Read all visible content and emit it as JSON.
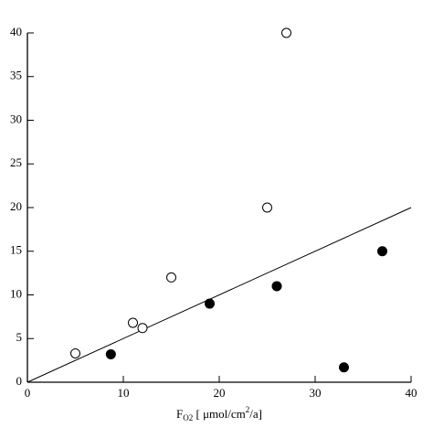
{
  "chart_data": {
    "type": "scatter",
    "x_label_parts": [
      "F",
      "O2",
      " [ μmol/cm",
      "2",
      "/a]"
    ],
    "xlim": [
      0,
      40
    ],
    "xticks": [
      0,
      10,
      20,
      30,
      40
    ],
    "ylim": [
      0,
      40
    ],
    "yticks": [
      0,
      5,
      10,
      15,
      20,
      25,
      30,
      35,
      40
    ],
    "series": [
      {
        "marker": "open",
        "color": "#000000",
        "x": [
          5,
          11,
          12,
          15,
          25,
          27
        ],
        "values": [
          3.3,
          6.8,
          6.2,
          12,
          20,
          40
        ]
      },
      {
        "marker": "filled",
        "color": "#000000",
        "x": [
          8.7,
          19,
          26,
          33,
          37
        ],
        "values": [
          3.2,
          9,
          11,
          1.7,
          15
        ]
      }
    ],
    "lines": [
      {
        "color": "#000000",
        "x": [
          0,
          40
        ],
        "values": [
          0,
          20
        ]
      }
    ]
  }
}
